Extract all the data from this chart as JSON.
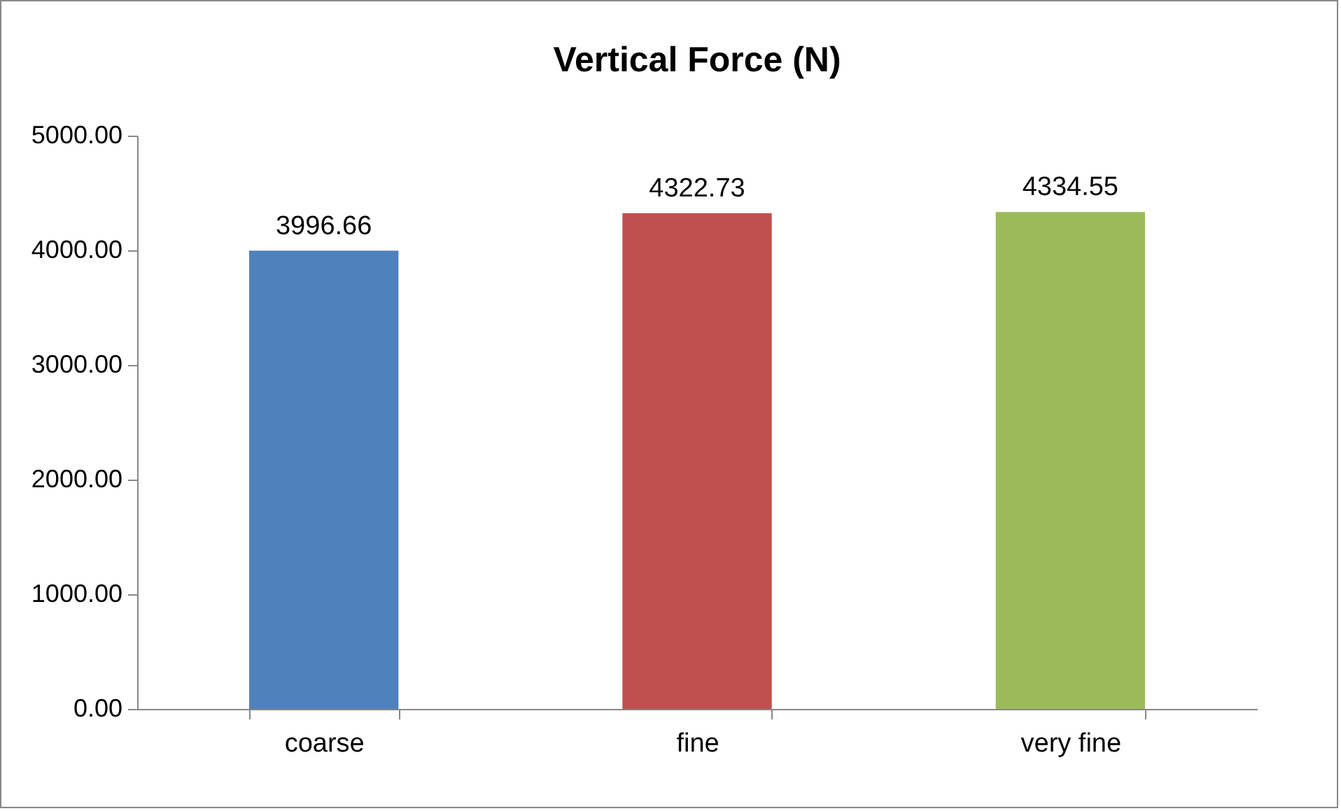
{
  "chart_data": {
    "type": "bar",
    "title": "Vertical Force (N)",
    "categories": [
      "coarse",
      "fine",
      "very fine"
    ],
    "values": [
      3996.66,
      4322.73,
      4334.55
    ],
    "colors": [
      "#4f81bd",
      "#c0504d",
      "#9bbb59"
    ],
    "ylim": [
      0,
      5000
    ],
    "yticks": [
      {
        "value": 0,
        "label": "0.00"
      },
      {
        "value": 1000,
        "label": "1000.00"
      },
      {
        "value": 2000,
        "label": "2000.00"
      },
      {
        "value": 3000,
        "label": "3000.00"
      },
      {
        "value": 4000,
        "label": "4000.00"
      },
      {
        "value": 5000,
        "label": "5000.00"
      }
    ],
    "data_labels": true
  }
}
